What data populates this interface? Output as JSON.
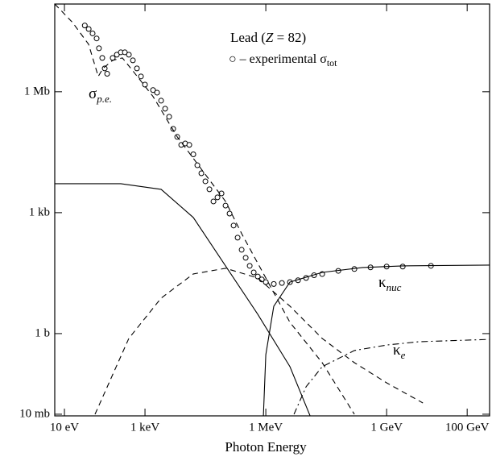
{
  "chart_data": {
    "type": "line",
    "x_label": "Photon Energy",
    "xscale": "log",
    "yscale": "log",
    "xlim": [
      5.75,
      360000000000.0
    ],
    "ylim": [
      0.0091,
      150000000.0
    ],
    "xticks": [
      {
        "value": 10,
        "label": "10 eV"
      },
      {
        "value": 1000,
        "label": "1 keV"
      },
      {
        "value": 1000000,
        "label": "1 MeV"
      },
      {
        "value": 1000000000,
        "label": "1 GeV"
      },
      {
        "value": 100000000000,
        "label": "100 GeV"
      }
    ],
    "yticks": [
      {
        "value": 0.01,
        "label": "10 mb"
      },
      {
        "value": 1,
        "label": "1 b"
      },
      {
        "value": 1000,
        "label": "1 kb"
      },
      {
        "value": 1000000,
        "label": "1 Mb"
      }
    ],
    "annotations": [
      {
        "pre": "Lead (",
        "italic": "Z",
        "post": " = 82)"
      },
      {
        "marker": "○",
        "text": " – experimental σ",
        "sub": "tot"
      }
    ],
    "series": [
      {
        "style": "points",
        "color": "#000000",
        "x": [
          32,
          40,
          50,
          63,
          72,
          87,
          100,
          115,
          158,
          200,
          251,
          316,
          398,
          501,
          631,
          794,
          1000,
          1585,
          1995,
          2512,
          3162,
          3981,
          5012,
          6310,
          7943,
          10000,
          12589,
          15849,
          19953,
          25119,
          31623,
          39811,
          50119,
          63096,
          79433,
          100000,
          125893,
          158489,
          199526,
          251189,
          316228,
          398107,
          501187,
          630957,
          794328,
          1000000,
          1580000,
          2510000,
          3980000,
          6310000,
          10000000,
          15800000,
          25100000,
          63100000,
          158000000,
          398000000,
          1000000000,
          2510000000,
          12600000000
        ],
        "values": [
          44000000.0,
          36000000.0,
          28000000.0,
          21000000.0,
          12000000.0,
          6900000.0,
          3800000.0,
          2800000.0,
          6900000.0,
          8300000.0,
          9500000.0,
          9500000.0,
          8300000.0,
          6000000.0,
          3800000.0,
          2400000.0,
          1500000.0,
          1100000.0,
          950000.0,
          600000.0,
          380000.0,
          240000.0,
          120000.0,
          76000.0,
          48000.0,
          52000.0,
          48000.0,
          28000.0,
          15000.0,
          9500,
          6000,
          3800,
          1900,
          2400,
          3000,
          1500,
          950,
          480,
          240,
          120,
          76,
          48,
          33,
          26,
          22,
          19,
          17,
          18,
          19,
          21,
          24,
          28,
          30,
          36,
          40,
          44,
          46,
          46,
          48
        ]
      },
      {
        "style": "dashed",
        "color": "#000000",
        "label": {
          "symbol": "σ",
          "sub": "p.e."
        },
        "x": [
          5.75,
          15.8,
          39.8,
          69.2,
          91.2,
          158,
          275,
          501,
          1585,
          6310,
          25119,
          100000,
          251189,
          1000000,
          3980000,
          25100000,
          158000000
        ],
        "values": [
          151000000.0,
          52500000.0,
          15100000.0,
          2400000.0,
          3800000.0,
          6030000.0,
          6900000.0,
          3300000.0,
          760000.0,
          76000.0,
          12000.0,
          1905,
          302,
          24,
          1.9,
          0.19,
          0.01
        ]
      },
      {
        "style": "solid",
        "color": "#000000",
        "x": [
          5.75,
          251,
          2512,
          15849,
          100000,
          631000,
          3980000,
          12600000
        ],
        "values": [
          5248,
          5248,
          3802,
          759,
          47.9,
          3.02,
          0.151,
          0.0091
        ]
      },
      {
        "style": "dashed",
        "color": "#000000",
        "x": [
          57.5,
          398,
          2512,
          15849,
          100000,
          631000,
          3980000,
          25100000,
          158000000,
          1000000000,
          7940000000
        ],
        "values": [
          0.01,
          0.759,
          7.59,
          30.2,
          41.7,
          24,
          4.79,
          0.759,
          0.19,
          0.06,
          0.019
        ]
      },
      {
        "style": "solid",
        "color": "#000000",
        "label": {
          "symbol": "κ",
          "sub": "nuc"
        },
        "x": [
          871000,
          1000000,
          1580000,
          3980000,
          25100000,
          251000000,
          2510000000,
          360000000000
        ],
        "values": [
          0.0091,
          0.3,
          4.79,
          19,
          33,
          43.7,
          47.9,
          50
        ]
      },
      {
        "style": "dashdot",
        "color": "#000000",
        "label": {
          "symbol": "κ",
          "sub": "e"
        },
        "x": [
          5010000,
          10000000,
          25100000,
          158000000,
          1000000000,
          6310000000,
          360000000000
        ],
        "values": [
          0.01,
          0.048,
          0.151,
          0.38,
          0.52,
          0.63,
          0.72
        ]
      }
    ]
  }
}
